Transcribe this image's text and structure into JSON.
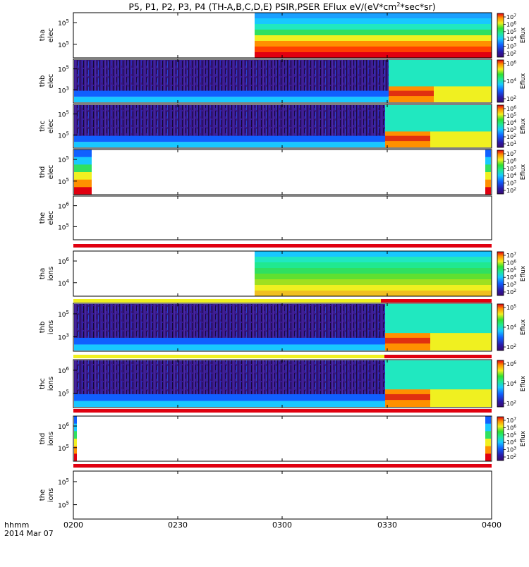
{
  "chart_data": {
    "type": "heatmap",
    "title_main": "P5, P1, P2, P3, P4 (TH-A,B,C,D,E) PSIR,PSER EFlux eV/(",
    "title_unit": "eV*cm",
    "title_sup": "2",
    "title_tail": "*sec*sr)",
    "x_axis": {
      "ticks": [
        "0200",
        "0230",
        "0300",
        "0330",
        "0400"
      ],
      "row_label": "hhmm",
      "date_label": "2014 Mar 07"
    },
    "colorbar_label": "Eflux",
    "panels": [
      {
        "id": "tha-elec",
        "ylabel": [
          "tha",
          "elec"
        ],
        "yticks": [
          "10",
          "10"
        ],
        "ytick_exps": [
          "5",
          "5"
        ],
        "cbar_ticks": [
          "7",
          "6",
          "5",
          "4",
          "3",
          "2"
        ]
      },
      {
        "id": "thb-elec",
        "ylabel": [
          "thb",
          "elec"
        ],
        "yticks": [
          "10",
          "10"
        ],
        "ytick_exps": [
          "5",
          "3"
        ],
        "cbar_ticks": [
          "6",
          "4",
          "2"
        ]
      },
      {
        "id": "thc-elec",
        "ylabel": [
          "thc",
          "elec"
        ],
        "yticks": [
          "10",
          "10"
        ],
        "ytick_exps": [
          "5",
          "5"
        ],
        "cbar_ticks": [
          "6",
          "5",
          "4",
          "3",
          "2",
          "1"
        ]
      },
      {
        "id": "thd-elec",
        "ylabel": [
          "thd",
          "elec"
        ],
        "yticks": [
          "10",
          "10"
        ],
        "ytick_exps": [
          "5",
          "5"
        ],
        "cbar_ticks": [
          "7",
          "6",
          "5",
          "4",
          "3",
          "2"
        ]
      },
      {
        "id": "the-elec",
        "ylabel": [
          "the",
          "elec"
        ],
        "yticks": [
          "10",
          "10"
        ],
        "ytick_exps": [
          "6",
          "5"
        ],
        "cbar_ticks": []
      },
      {
        "id": "tha-ions",
        "ylabel": [
          "tha",
          "ions"
        ],
        "yticks": [
          "10",
          "10"
        ],
        "ytick_exps": [
          "6",
          "4"
        ],
        "cbar_ticks": [
          "7",
          "6",
          "5",
          "4",
          "3",
          "2"
        ]
      },
      {
        "id": "thb-ions",
        "ylabel": [
          "thb",
          "ions"
        ],
        "yticks": [
          "10",
          "10"
        ],
        "ytick_exps": [
          "5",
          "3"
        ],
        "cbar_ticks": [
          "5",
          "4",
          "2"
        ]
      },
      {
        "id": "thc-ions",
        "ylabel": [
          "thc",
          "ions"
        ],
        "yticks": [
          "10",
          "10"
        ],
        "ytick_exps": [
          "6",
          "5"
        ],
        "cbar_ticks": [
          "6",
          "4",
          "2"
        ]
      },
      {
        "id": "thd-ions",
        "ylabel": [
          "thd",
          "ions"
        ],
        "yticks": [
          "10",
          "10"
        ],
        "ytick_exps": [
          "6",
          "5"
        ],
        "cbar_ticks": [
          "7",
          "6",
          "5",
          "4",
          "3",
          "2"
        ]
      },
      {
        "id": "the-ions",
        "ylabel": [
          "the",
          "ions"
        ],
        "yticks": [
          "10",
          "10"
        ],
        "ytick_exps": [
          "5",
          "5"
        ],
        "cbar_ticks": []
      }
    ]
  }
}
